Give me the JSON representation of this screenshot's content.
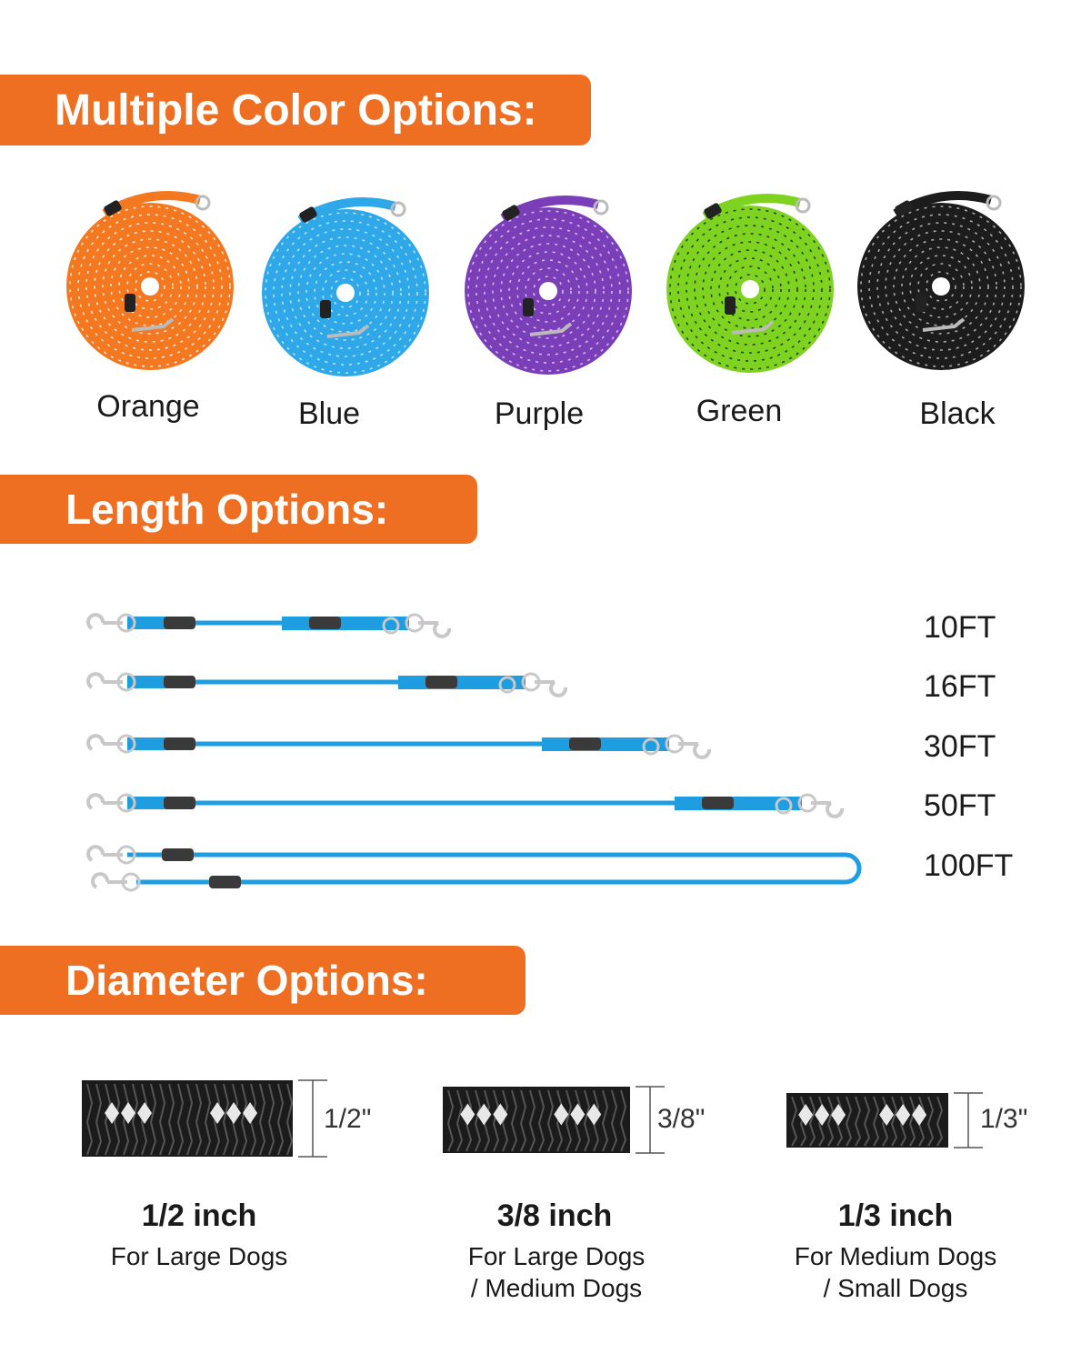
{
  "accent_color": "#ee6e22",
  "colors_section": {
    "title": "Multiple Color Options:",
    "items": [
      {
        "label": "Orange",
        "color": "#f4781f",
        "pattern": "#ffffff"
      },
      {
        "label": "Blue",
        "color": "#2ea8e8",
        "pattern": "#d8f0ff"
      },
      {
        "label": "Purple",
        "color": "#7a3fb8",
        "pattern": "#e4d8f4"
      },
      {
        "label": "Green",
        "color": "#7ed321",
        "pattern": "#1a1a1a"
      },
      {
        "label": "Black",
        "color": "#1c1c1c",
        "pattern": "#cccccc"
      }
    ]
  },
  "length_section": {
    "title": "Length Options:",
    "items": [
      {
        "label": "10FT",
        "feet": 10
      },
      {
        "label": "16FT",
        "feet": 16
      },
      {
        "label": "30FT",
        "feet": 30
      },
      {
        "label": "50FT",
        "feet": 50
      },
      {
        "label": "100FT",
        "feet": 100
      }
    ],
    "leash_color": "#1e9ee0"
  },
  "diameter_section": {
    "title": "Diameter Options:",
    "items": [
      {
        "mark": "1/2\"",
        "title": "1/2 inch",
        "line1": "For Large Dogs",
        "line2": ""
      },
      {
        "mark": "3/8\"",
        "title": "3/8 inch",
        "line1": "For Large Dogs",
        "line2": "/ Medium Dogs"
      },
      {
        "mark": "1/3\"",
        "title": "1/3 inch",
        "line1": "For Medium Dogs",
        "line2": "/ Small Dogs"
      }
    ]
  }
}
